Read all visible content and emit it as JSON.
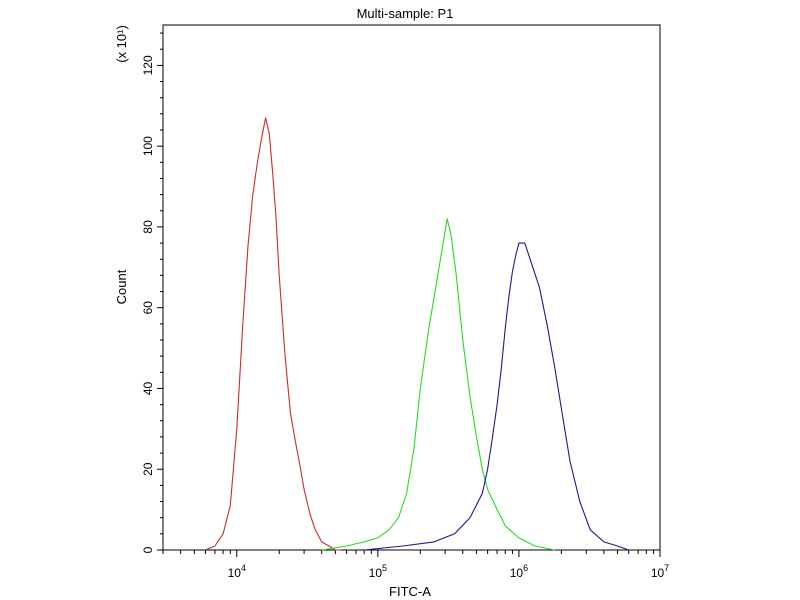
{
  "chart_data": {
    "type": "line",
    "title": "Multi-sample: P1",
    "xlabel": "FITC-A",
    "ylabel": "Count",
    "y_multiplier_label": "(x 10¹)",
    "x_scale": "log",
    "xlim": [
      3000,
      10000000
    ],
    "ylim": [
      0,
      130
    ],
    "x_ticks": [
      {
        "value": 10000,
        "base": "10",
        "exp": "4"
      },
      {
        "value": 100000,
        "base": "10",
        "exp": "5"
      },
      {
        "value": 1000000,
        "base": "10",
        "exp": "6"
      },
      {
        "value": 10000000,
        "base": "10",
        "exp": "7"
      }
    ],
    "y_ticks": [
      0,
      20,
      40,
      60,
      80,
      100,
      120
    ],
    "grid": false,
    "series": [
      {
        "color": "#cc2a2a",
        "x": [
          6000,
          7000,
          8000,
          9000,
          10000,
          11000,
          12000,
          13000,
          14000,
          15000,
          16000,
          17000,
          18000,
          19000,
          20000,
          22000,
          24000,
          26000,
          28000,
          30000,
          33000,
          36000,
          40000,
          45000,
          50000,
          55000
        ],
        "y": [
          0,
          1,
          4,
          11,
          30,
          55,
          75,
          88,
          96,
          102,
          107,
          103,
          93,
          82,
          68,
          48,
          34,
          27,
          21,
          15,
          9,
          5,
          2,
          1,
          0,
          0
        ]
      },
      {
        "color": "#22dd22",
        "x": [
          40000,
          60000,
          80000,
          100000,
          120000,
          140000,
          160000,
          180000,
          200000,
          230000,
          260000,
          290000,
          310000,
          330000,
          360000,
          400000,
          450000,
          500000,
          550000,
          600000,
          700000,
          800000,
          1000000,
          1300000,
          1800000
        ],
        "y": [
          0,
          1,
          2,
          3,
          5,
          8,
          14,
          25,
          40,
          55,
          66,
          76,
          82,
          78,
          68,
          52,
          38,
          28,
          20,
          15,
          10,
          6,
          3,
          1,
          0
        ]
      },
      {
        "color": "#1a1a8c",
        "x": [
          80000,
          150000,
          250000,
          350000,
          450000,
          550000,
          600000,
          650000,
          700000,
          750000,
          800000,
          850000,
          900000,
          950000,
          1000000,
          1100000,
          1200000,
          1400000,
          1600000,
          1800000,
          2000000,
          2300000,
          2700000,
          3200000,
          4000000,
          5000000,
          6000000
        ],
        "y": [
          0,
          1,
          2,
          4,
          8,
          14,
          20,
          28,
          36,
          45,
          55,
          63,
          69,
          73,
          76,
          76,
          72,
          65,
          55,
          45,
          35,
          22,
          12,
          5,
          2,
          1,
          0
        ]
      }
    ]
  }
}
